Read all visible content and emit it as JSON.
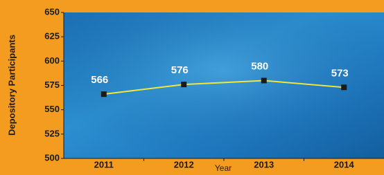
{
  "chart_data": {
    "type": "line",
    "x_label": "Year",
    "y_label": "Depository Participants",
    "categories": [
      "2011",
      "2012",
      "2013",
      "2014"
    ],
    "values": [
      566,
      576,
      580,
      573
    ],
    "color": "#f5e63a",
    "marker_color": "#1a1a1a",
    "ylim": [
      500,
      650
    ],
    "yticks": [
      500,
      525,
      550,
      575,
      600,
      625,
      650
    ]
  }
}
